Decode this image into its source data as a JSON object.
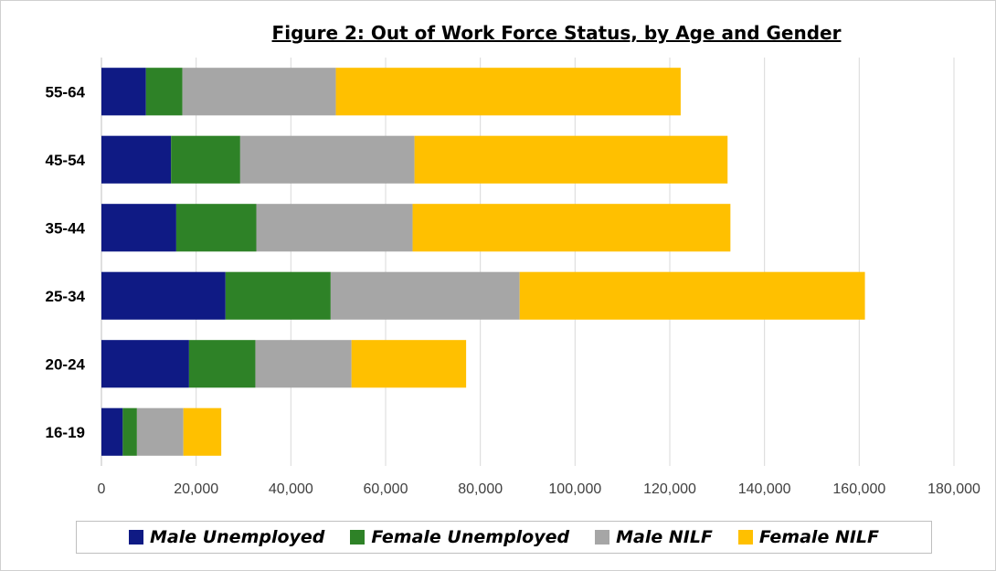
{
  "chart_data": {
    "type": "bar",
    "orientation": "horizontal",
    "stacked": true,
    "title": "Figure 2: Out of Work Force Status, by Age and Gender",
    "categories": [
      "16-19",
      "20-24",
      "25-34",
      "35-44",
      "45-54",
      "55-64"
    ],
    "series": [
      {
        "name": "Male Unemployed",
        "color": "#0f1a84",
        "values": [
          4500,
          18500,
          26200,
          15800,
          14700,
          9400
        ]
      },
      {
        "name": "Female Unemployed",
        "color": "#2e8227",
        "values": [
          3000,
          14000,
          22200,
          16900,
          14600,
          7700
        ]
      },
      {
        "name": "Male NILF",
        "color": "#a6a6a6",
        "values": [
          9800,
          20300,
          39900,
          33000,
          36800,
          32400
        ]
      },
      {
        "name": "Female NILF",
        "color": "#ffc000",
        "values": [
          8000,
          24200,
          72900,
          67100,
          66100,
          72800
        ]
      }
    ],
    "xlim": [
      0,
      180000
    ],
    "xticks": [
      "0",
      "20,000",
      "40,000",
      "60,000",
      "80,000",
      "100,000",
      "120,000",
      "140,000",
      "160,000",
      "180,000"
    ],
    "grid": true,
    "legend_position": "bottom"
  }
}
